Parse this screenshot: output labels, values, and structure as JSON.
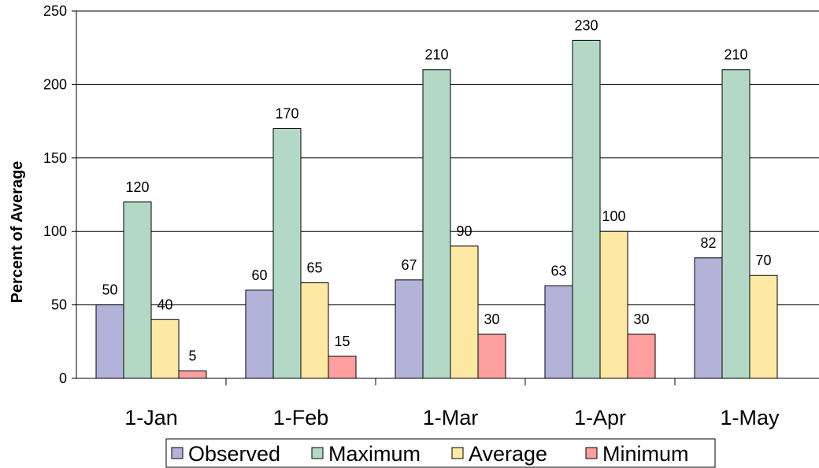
{
  "chart_data": {
    "type": "bar",
    "title": "",
    "xlabel": "",
    "ylabel": "Percent of Average",
    "ylim": [
      0,
      250
    ],
    "yticks": [
      0,
      50,
      100,
      150,
      200,
      250
    ],
    "grid": true,
    "legend_position": "bottom",
    "categories": [
      "1-Jan",
      "1-Feb",
      "1-Mar",
      "1-Apr",
      "1-May"
    ],
    "series": [
      {
        "name": "Observed",
        "color": "#B3B3D9",
        "values": [
          50,
          60,
          67,
          63,
          82
        ]
      },
      {
        "name": "Maximum",
        "color": "#B3D9C6",
        "values": [
          120,
          170,
          210,
          230,
          210
        ]
      },
      {
        "name": "Average",
        "color": "#FDE9A3",
        "values": [
          40,
          65,
          90,
          100,
          70
        ]
      },
      {
        "name": "Minimum",
        "color": "#FF9F9F",
        "values": [
          5,
          15,
          30,
          30,
          null
        ]
      }
    ]
  }
}
